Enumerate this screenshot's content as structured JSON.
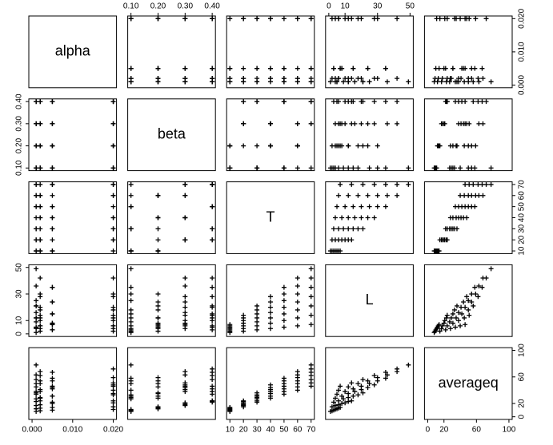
{
  "chart_data": {
    "type": "scatter-matrix",
    "variables": [
      {
        "name": "alpha",
        "lim": [
          0,
          0.02
        ],
        "ticks": [
          {
            "value": 0,
            "label": "0.000"
          },
          {
            "value": 0.01,
            "label": "0.010"
          },
          {
            "value": 0.02,
            "label": "0.020"
          }
        ],
        "values": [
          0.001,
          0.002,
          0.005,
          0.02,
          0.001,
          0.002,
          0.005,
          0.02,
          0.001,
          0.002,
          0.005,
          0.02,
          0.001,
          0.002,
          0.005,
          0.02,
          0.001,
          0.002,
          0.005,
          0.02,
          0.001,
          0.002,
          0.005,
          0.02,
          0.001,
          0.002,
          0.005,
          0.02,
          0.001,
          0.002,
          0.005,
          0.02,
          0.001,
          0.002,
          0.005,
          0.02,
          0.001,
          0.002,
          0.005,
          0.02,
          0.001,
          0.002,
          0.005,
          0.02,
          0.001,
          0.002,
          0.005,
          0.02,
          0.001
        ]
      },
      {
        "name": "beta",
        "lim": [
          0.1,
          0.4
        ],
        "ticks": [
          {
            "value": 0.1,
            "label": "0.10"
          },
          {
            "value": 0.2,
            "label": "0.20"
          },
          {
            "value": 0.3,
            "label": "0.30"
          },
          {
            "value": 0.4,
            "label": "0.40"
          }
        ],
        "values": [
          0.1,
          0.1,
          0.1,
          0.1,
          0.2,
          0.2,
          0.2,
          0.2,
          0.3,
          0.3,
          0.3,
          0.3,
          0.4,
          0.4,
          0.4,
          0.4,
          0.1,
          0.1,
          0.1,
          0.1,
          0.2,
          0.2,
          0.2,
          0.2,
          0.3,
          0.3,
          0.3,
          0.3,
          0.4,
          0.4,
          0.4,
          0.4,
          0.1,
          0.1,
          0.1,
          0.1,
          0.2,
          0.2,
          0.2,
          0.2,
          0.3,
          0.3,
          0.3,
          0.3,
          0.4,
          0.4,
          0.4,
          0.4,
          0.1
        ]
      },
      {
        "name": "T",
        "lim": [
          10,
          70
        ],
        "ticks": [
          10,
          20,
          30,
          40,
          50,
          60,
          70
        ],
        "values": [
          10,
          10,
          10,
          10,
          10,
          10,
          10,
          20,
          20,
          20,
          20,
          20,
          20,
          20,
          30,
          30,
          30,
          30,
          30,
          30,
          30,
          40,
          40,
          40,
          40,
          40,
          40,
          40,
          50,
          50,
          50,
          50,
          50,
          50,
          50,
          60,
          60,
          60,
          60,
          60,
          60,
          60,
          70,
          70,
          70,
          70,
          70,
          70,
          70
        ]
      },
      {
        "name": "L",
        "lim": [
          0,
          50
        ],
        "ticks": [
          0,
          10,
          30,
          50
        ],
        "values": [
          1,
          2,
          3,
          4,
          5,
          6,
          7,
          2,
          4,
          6,
          8,
          10,
          12,
          14,
          3,
          6,
          9,
          12,
          15,
          18,
          21,
          4,
          8,
          12,
          16,
          20,
          24,
          28,
          5,
          10,
          15,
          20,
          25,
          30,
          35,
          6,
          12,
          18,
          24,
          30,
          36,
          42,
          7,
          14,
          21,
          28,
          35,
          42,
          49
        ]
      },
      {
        "name": "averageq",
        "lim": [
          0,
          100
        ],
        "ticks": [
          0,
          20,
          60,
          100
        ],
        "values": [
          8,
          9,
          10,
          11,
          12,
          13,
          14,
          15,
          17,
          18,
          20,
          21,
          23,
          24,
          22,
          24,
          27,
          29,
          31,
          33,
          36,
          28,
          31,
          35,
          38,
          41,
          44,
          48,
          34,
          38,
          42,
          46,
          50,
          54,
          58,
          40,
          45,
          50,
          54,
          59,
          63,
          68,
          46,
          51,
          56,
          62,
          67,
          72,
          78
        ]
      }
    ]
  }
}
